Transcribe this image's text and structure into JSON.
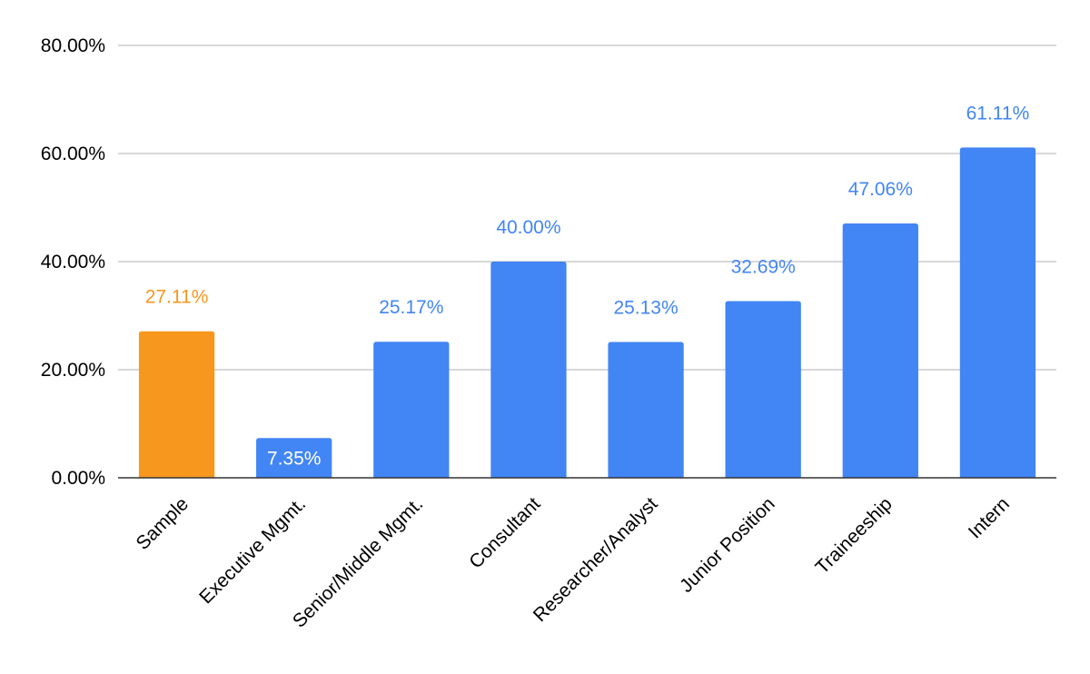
{
  "chart_data": {
    "type": "bar",
    "categories": [
      "Sample",
      "Executive Mgmt.",
      "Senior/Middle Mgmt.",
      "Consultant",
      "Researcher/Analyst",
      "Junior Position",
      "Traineeship",
      "Intern"
    ],
    "values": [
      27.11,
      7.35,
      25.17,
      40.0,
      25.13,
      32.69,
      47.06,
      61.11
    ],
    "value_labels": [
      "27.11%",
      "7.35%",
      "25.17%",
      "40.00%",
      "25.13%",
      "32.69%",
      "47.06%",
      "61.11%"
    ],
    "bar_colors": [
      "#F7971E",
      "#4285F4",
      "#4285F4",
      "#4285F4",
      "#4285F4",
      "#4285F4",
      "#4285F4",
      "#4285F4"
    ],
    "label_colors": [
      "#F7971E",
      "#FFFFFF",
      "#4285F4",
      "#4285F4",
      "#4285F4",
      "#4285F4",
      "#4285F4",
      "#4285F4"
    ],
    "label_inside": [
      false,
      true,
      false,
      false,
      false,
      false,
      false,
      false
    ],
    "yticks": [
      0,
      20,
      40,
      60,
      80
    ],
    "ytick_labels": [
      "0.00%",
      "20.00%",
      "40.00%",
      "60.00%",
      "80.00%"
    ],
    "ylim": [
      0,
      80
    ],
    "grid": true,
    "legend": "none",
    "title": "",
    "xlabel": "",
    "ylabel": ""
  }
}
